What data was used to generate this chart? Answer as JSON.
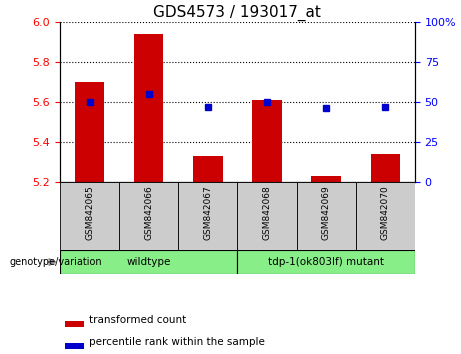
{
  "title": "GDS4573 / 193017_at",
  "categories": [
    "GSM842065",
    "GSM842066",
    "GSM842067",
    "GSM842068",
    "GSM842069",
    "GSM842070"
  ],
  "red_values": [
    5.7,
    5.94,
    5.33,
    5.61,
    5.23,
    5.34
  ],
  "blue_values": [
    50,
    55,
    47,
    50,
    46,
    47
  ],
  "red_base": 5.2,
  "ylim_left": [
    5.2,
    6.0
  ],
  "ylim_right": [
    0,
    100
  ],
  "yticks_left": [
    5.2,
    5.4,
    5.6,
    5.8,
    6.0
  ],
  "yticks_right": [
    0,
    25,
    50,
    75,
    100
  ],
  "ytick_labels_right": [
    "0",
    "25",
    "50",
    "75",
    "100%"
  ],
  "bar_color": "#cc0000",
  "dot_color": "#0000cc",
  "group1_label": "wildtype",
  "group2_label": "tdp-1(ok803lf) mutant",
  "group1_indices": [
    0,
    1,
    2
  ],
  "group2_indices": [
    3,
    4,
    5
  ],
  "group_bg_color": "#88ee88",
  "tick_bg_color": "#cccccc",
  "legend_red_label": "transformed count",
  "legend_blue_label": "percentile rank within the sample",
  "genotype_label": "genotype/variation",
  "bar_width": 0.5,
  "title_fontsize": 11,
  "tick_fontsize": 8,
  "label_fontsize": 7.5
}
